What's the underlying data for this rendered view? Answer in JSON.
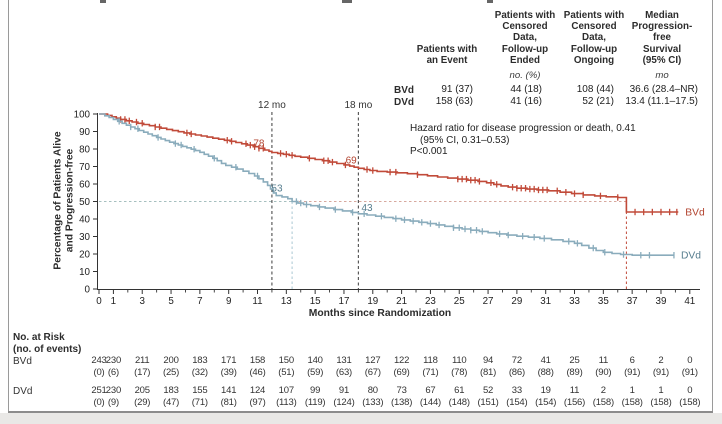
{
  "summary_table": {
    "columns": [
      {
        "header": "Patients with\nan Event",
        "unit": ""
      },
      {
        "header": "Patients with\nCensored\nData,\nFollow-up\nEnded",
        "unit": "no. (%)"
      },
      {
        "header": "Patients with\nCensored\nData,\nFollow-up\nOngoing",
        "unit": ""
      },
      {
        "header": "Median\nProgression-\nfree\nSurvival\n(95% CI)",
        "unit": "mo"
      }
    ],
    "rows": [
      {
        "label": "BVd",
        "values": [
          "91 (37)",
          "44 (18)",
          "108 (44)",
          "36.6 (28.4–NR)"
        ]
      },
      {
        "label": "DVd",
        "values": [
          "158 (63)",
          "41 (16)",
          "52 (21)",
          "13.4 (11.1–17.5)"
        ]
      }
    ]
  },
  "hazard_note": {
    "line1": "Hazard ratio for disease progression or death, 0.41",
    "line2": "(95% CI, 0.31–0.53)",
    "line3": "P<0.001"
  },
  "chart_data": {
    "type": "line",
    "subtype": "kaplan-meier-step",
    "xlabel": "Months since Randomization",
    "ylabel": "Percentage of Patients Alive\nand Progression-free",
    "xlim": [
      0,
      41
    ],
    "ylim": [
      0,
      100
    ],
    "x_major_ticks": [
      0,
      1,
      3,
      5,
      7,
      9,
      11,
      13,
      15,
      17,
      19,
      21,
      23,
      25,
      27,
      29,
      31,
      33,
      35,
      37,
      39,
      41
    ],
    "x_minor_ticks": [
      2,
      4,
      6,
      8,
      10,
      12,
      14,
      16,
      18,
      20,
      22,
      24,
      26,
      28,
      30,
      32,
      34,
      36,
      38,
      40
    ],
    "y_ticks": [
      0,
      10,
      20,
      30,
      40,
      50,
      60,
      70,
      80,
      90,
      100
    ],
    "axis_color": "#333333",
    "series": [
      {
        "name": "BVd",
        "color": "#c14a39",
        "label_color": "#b2432f",
        "steps": [
          [
            0,
            100
          ],
          [
            0.6,
            99.2
          ],
          [
            0.9,
            98.4
          ],
          [
            1.2,
            97.6
          ],
          [
            1.5,
            96.9
          ],
          [
            1.9,
            96.1
          ],
          [
            2.3,
            95.4
          ],
          [
            2.7,
            94.7
          ],
          [
            3.1,
            94
          ],
          [
            3.5,
            93.3
          ],
          [
            3.9,
            92.6
          ],
          [
            4.3,
            91.9
          ],
          [
            4.7,
            91.2
          ],
          [
            5.1,
            90.5
          ],
          [
            5.5,
            89.9
          ],
          [
            5.9,
            89.2
          ],
          [
            6.3,
            88.6
          ],
          [
            6.7,
            88
          ],
          [
            7.1,
            87.4
          ],
          [
            7.5,
            86.8
          ],
          [
            7.9,
            86.2
          ],
          [
            8.3,
            85.6
          ],
          [
            8.7,
            85
          ],
          [
            9.1,
            84.4
          ],
          [
            9.5,
            83.7
          ],
          [
            9.9,
            83
          ],
          [
            10.3,
            82.2
          ],
          [
            10.7,
            81.3
          ],
          [
            11.1,
            80.4
          ],
          [
            11.5,
            79.4
          ],
          [
            11.8,
            78.7
          ],
          [
            12,
            78
          ],
          [
            12.4,
            77.5
          ],
          [
            12.8,
            77
          ],
          [
            13.2,
            76.4
          ],
          [
            13.6,
            75.8
          ],
          [
            14,
            75.3
          ],
          [
            14.5,
            74.7
          ],
          [
            15,
            74
          ],
          [
            15.5,
            73.3
          ],
          [
            16,
            72.5
          ],
          [
            16.5,
            71.7
          ],
          [
            17,
            70.9
          ],
          [
            17.4,
            70.2
          ],
          [
            17.7,
            69.6
          ],
          [
            18,
            69
          ],
          [
            18.4,
            68.3
          ],
          [
            18.8,
            67.7
          ],
          [
            19.3,
            67.2
          ],
          [
            20,
            66.8
          ],
          [
            20.7,
            66.4
          ],
          [
            21.4,
            65.9
          ],
          [
            22.1,
            65.3
          ],
          [
            22.8,
            64.7
          ],
          [
            23.5,
            64
          ],
          [
            24.2,
            63.4
          ],
          [
            24.9,
            62.8
          ],
          [
            25.6,
            62.2
          ],
          [
            26.3,
            61.5
          ],
          [
            26.9,
            60.7
          ],
          [
            27.4,
            59.8
          ],
          [
            27.9,
            58.9
          ],
          [
            28.4,
            58.2
          ],
          [
            29,
            57.6
          ],
          [
            29.7,
            57.1
          ],
          [
            30.4,
            56.6
          ],
          [
            31.2,
            56.1
          ],
          [
            32,
            55.3
          ],
          [
            32.8,
            54.5
          ],
          [
            33.6,
            53.8
          ],
          [
            34.4,
            53.2
          ],
          [
            35.2,
            52.7
          ],
          [
            36,
            52.3
          ],
          [
            36.6,
            44
          ],
          [
            40.2,
            44
          ]
        ],
        "censors": [
          1.5,
          1.8,
          2.1,
          2.6,
          3.0,
          3.9,
          4.2,
          6.1,
          6.4,
          8.9,
          9.2,
          10.2,
          10.5,
          10.8,
          11.1,
          11.4,
          12.6,
          13.0,
          13.4,
          14.6,
          15.6,
          15.9,
          16.2,
          17.1,
          18.6,
          19.0,
          20.2,
          20.6,
          22.1,
          24.9,
          25.2,
          25.5,
          25.8,
          26.1,
          26.4,
          27.2,
          27.6,
          28.7,
          29.0,
          29.3,
          29.6,
          29.9,
          30.2,
          30.5,
          30.8,
          31.1,
          31.8,
          32.4,
          33.0,
          33.6,
          34.8,
          36.0,
          37.2,
          37.8,
          38.4,
          39.0,
          39.6,
          40.1
        ]
      },
      {
        "name": "DVd",
        "color": "#8aacbc",
        "label_color": "#567d8e",
        "steps": [
          [
            0,
            100
          ],
          [
            0.4,
            99
          ],
          [
            0.7,
            98
          ],
          [
            1,
            96.9
          ],
          [
            1.3,
            95.8
          ],
          [
            1.6,
            94.7
          ],
          [
            1.9,
            93.6
          ],
          [
            2.2,
            92.6
          ],
          [
            2.5,
            91.6
          ],
          [
            2.8,
            90.6
          ],
          [
            3.1,
            89.6
          ],
          [
            3.4,
            88.6
          ],
          [
            3.7,
            87.6
          ],
          [
            4,
            86.6
          ],
          [
            4.3,
            85.7
          ],
          [
            4.6,
            84.8
          ],
          [
            4.9,
            83.9
          ],
          [
            5.2,
            83.1
          ],
          [
            5.5,
            82.3
          ],
          [
            5.8,
            81.5
          ],
          [
            6.1,
            80.7
          ],
          [
            6.4,
            79.9
          ],
          [
            6.7,
            79.1
          ],
          [
            7,
            78.1
          ],
          [
            7.3,
            77
          ],
          [
            7.6,
            75.9
          ],
          [
            7.9,
            74.7
          ],
          [
            8.2,
            73.3
          ],
          [
            8.5,
            71.8
          ],
          [
            8.8,
            70.6
          ],
          [
            9.2,
            69.6
          ],
          [
            9.6,
            68.5
          ],
          [
            10,
            67.3
          ],
          [
            10.4,
            66
          ],
          [
            10.8,
            64.6
          ],
          [
            11.1,
            63
          ],
          [
            11.4,
            61.2
          ],
          [
            11.7,
            59.2
          ],
          [
            11.9,
            57.2
          ],
          [
            12.1,
            54.9
          ],
          [
            12.3,
            53.4
          ],
          [
            12.7,
            52.6
          ],
          [
            13.1,
            51.6
          ],
          [
            13.4,
            50
          ],
          [
            13.8,
            49.1
          ],
          [
            14.2,
            48.3
          ],
          [
            14.7,
            47.6
          ],
          [
            15.2,
            46.9
          ],
          [
            15.7,
            46.2
          ],
          [
            16.3,
            45.4
          ],
          [
            16.9,
            44.6
          ],
          [
            17.5,
            43.8
          ],
          [
            18,
            43
          ],
          [
            18.6,
            42.3
          ],
          [
            19.2,
            41.6
          ],
          [
            19.8,
            40.9
          ],
          [
            20.4,
            40.2
          ],
          [
            21,
            39.5
          ],
          [
            21.6,
            38.8
          ],
          [
            22.2,
            38.1
          ],
          [
            22.8,
            37.4
          ],
          [
            23.4,
            36.6
          ],
          [
            24,
            35.8
          ],
          [
            24.6,
            35
          ],
          [
            25.2,
            34.3
          ],
          [
            25.8,
            33.6
          ],
          [
            26.4,
            32.9
          ],
          [
            27,
            32.2
          ],
          [
            27.6,
            31.5
          ],
          [
            28.3,
            30.8
          ],
          [
            29,
            30.2
          ],
          [
            29.8,
            29.6
          ],
          [
            30.6,
            28.9
          ],
          [
            31.4,
            28.1
          ],
          [
            32.2,
            27.2
          ],
          [
            33,
            26.1
          ],
          [
            33.5,
            24.9
          ],
          [
            34,
            23.4
          ],
          [
            34.5,
            22
          ],
          [
            35,
            21
          ],
          [
            35.6,
            20.3
          ],
          [
            36.2,
            19.7
          ],
          [
            37,
            19.3
          ],
          [
            39.9,
            19.3
          ]
        ],
        "censors": [
          1.4,
          2.2,
          2.7,
          4.1,
          5.3,
          5.7,
          6.6,
          8.0,
          9.5,
          11.0,
          13.7,
          14.0,
          14.4,
          15.3,
          16.4,
          17.6,
          18.4,
          19.6,
          20.6,
          21.2,
          21.8,
          22.4,
          23.0,
          23.6,
          24.6,
          25.0,
          25.4,
          25.8,
          26.2,
          26.6,
          27.8,
          28.4,
          29.4,
          30.2,
          30.9,
          32.6,
          33.2,
          34.3,
          35.1,
          36.4,
          37.6,
          38.2,
          39.9
        ]
      }
    ],
    "annotations": {
      "vlines": [
        {
          "m": 12,
          "label": "12 mo",
          "color": "#4d4d4d"
        },
        {
          "m": 18,
          "label": "18 mo",
          "color": "#4d4d4d"
        }
      ],
      "medians": [
        {
          "series": "DVd",
          "m": 13.4,
          "color": "#a9c6d3"
        },
        {
          "series": "BVd",
          "m": 36.6,
          "color": "#c14a39"
        }
      ],
      "hline_segments": [
        {
          "y": 50,
          "x_from": 0,
          "x_to": 36.6,
          "color": "#d7a89e"
        },
        {
          "y": 50,
          "x_from": 0,
          "x_to": 13.4,
          "color": "#a6bfbf"
        }
      ],
      "point_labels": [
        {
          "series": "BVd",
          "text": "78",
          "m": 11.1,
          "v": 81.5
        },
        {
          "series": "BVd",
          "text": "69",
          "m": 17.5,
          "v": 71.8
        },
        {
          "series": "DVd",
          "text": "53",
          "m": 12.35,
          "v": 55.8
        },
        {
          "series": "DVd",
          "text": "43",
          "m": 18.6,
          "v": 44.5
        }
      ]
    },
    "legend_position": "right-end-of-curves"
  },
  "risk_table": {
    "title": "No. at Risk\n(no. of events)",
    "months": [
      0,
      1,
      3,
      5,
      7,
      9,
      11,
      13,
      15,
      17,
      19,
      21,
      23,
      25,
      27,
      29,
      31,
      33,
      35,
      37,
      39,
      41
    ],
    "rows": [
      {
        "label": "BVd",
        "counts": [
          243,
          230,
          211,
          200,
          183,
          171,
          158,
          150,
          140,
          131,
          127,
          122,
          118,
          110,
          94,
          72,
          41,
          25,
          11,
          6,
          2,
          0
        ],
        "events": [
          0,
          6,
          17,
          25,
          32,
          39,
          46,
          51,
          59,
          63,
          67,
          69,
          71,
          78,
          81,
          86,
          88,
          89,
          90,
          91,
          91,
          91
        ]
      },
      {
        "label": "DVd",
        "counts": [
          251,
          230,
          205,
          183,
          155,
          141,
          124,
          107,
          99,
          91,
          80,
          73,
          67,
          61,
          52,
          33,
          19,
          11,
          2,
          1,
          1,
          0
        ],
        "events": [
          0,
          9,
          29,
          47,
          71,
          81,
          97,
          113,
          119,
          124,
          133,
          138,
          144,
          148,
          151,
          154,
          154,
          156,
          158,
          158,
          158,
          158
        ]
      }
    ]
  }
}
